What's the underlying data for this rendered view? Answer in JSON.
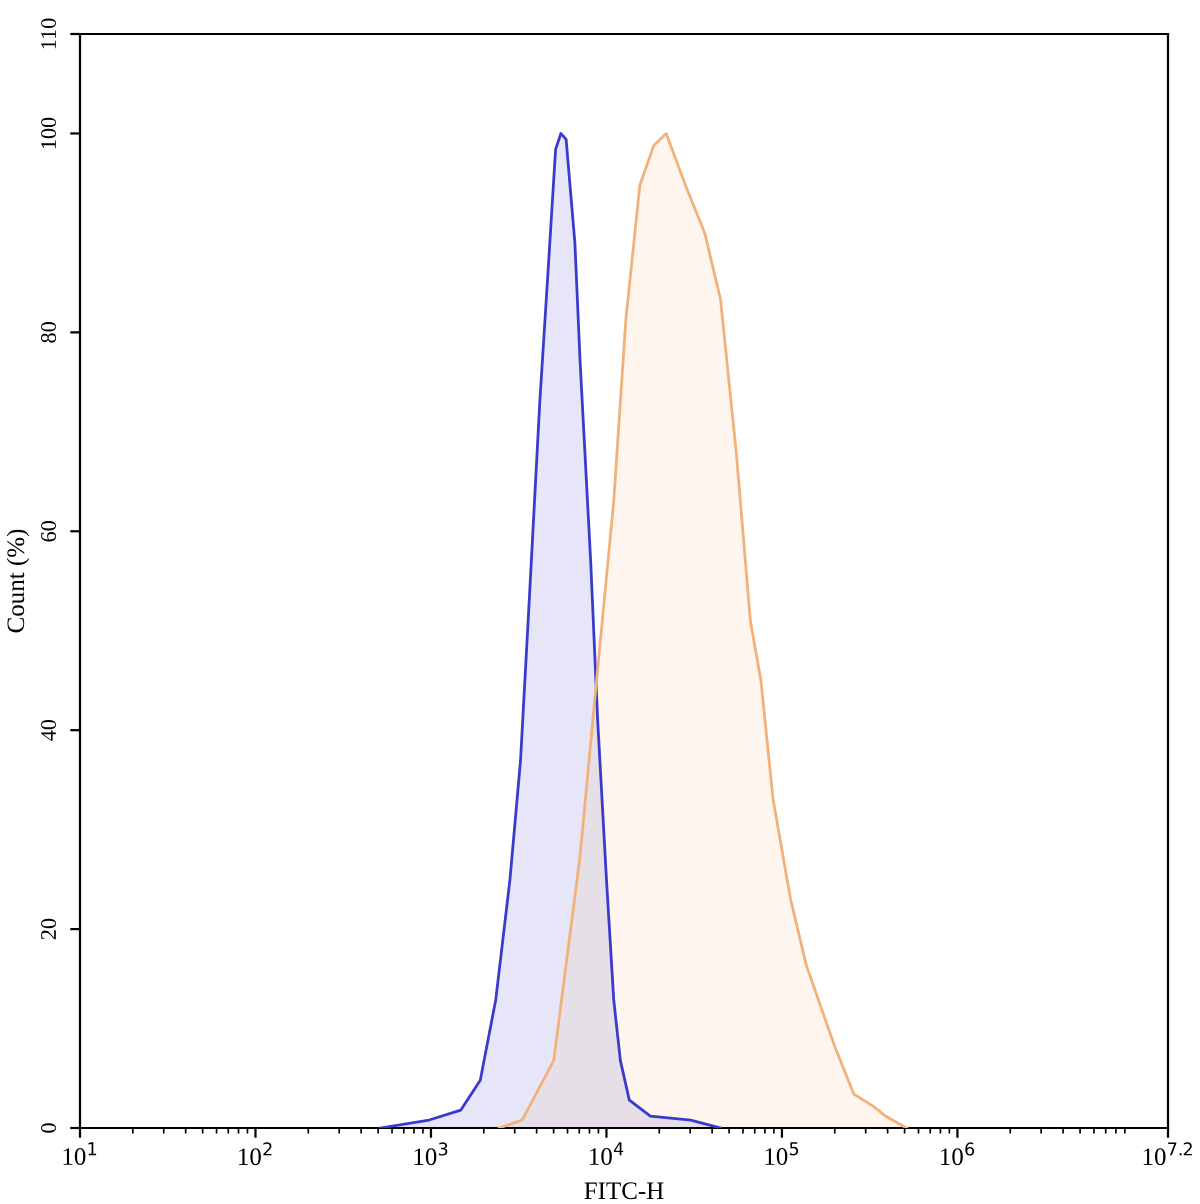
{
  "chart_data": {
    "type": "area",
    "xlabel": "FITC-H",
    "ylabel": "Count (%)",
    "log": "x",
    "grid": false,
    "legend": false,
    "xlim": [
      10,
      15848932
    ],
    "ylim": [
      0,
      110
    ],
    "xticks": [
      {
        "value": 10,
        "label": "10$^{1}$"
      },
      {
        "value": 100,
        "label": "10$^{2}$"
      },
      {
        "value": 1000,
        "label": "10$^{3}$"
      },
      {
        "value": 10000,
        "label": "10$^{4}$"
      },
      {
        "value": 100000,
        "label": "10$^{5}$"
      },
      {
        "value": 1000000,
        "label": "10$^{6}$"
      },
      {
        "value": 15848932,
        "label": "10$^{7.2}$"
      }
    ],
    "yticks": [
      0,
      20,
      40,
      60,
      80,
      100,
      110
    ],
    "series": [
      {
        "color": "#3a3acc",
        "x": [
          513,
          977,
          1480,
          1910,
          2340,
          2820,
          3240,
          3630,
          4170,
          4680,
          5130,
          5500,
          5890,
          6610,
          7080,
          8130,
          8910,
          10000,
          11000,
          12000,
          13500,
          17800,
          30200,
          44700
        ],
        "values": [
          0,
          0.8,
          1.8,
          4.8,
          12.9,
          25,
          37,
          53,
          73,
          87,
          98.4,
          100,
          99.4,
          89,
          77,
          57,
          41,
          25,
          12.9,
          6.8,
          2.8,
          1.2,
          0.8,
          0
        ]
      },
      {
        "color": "#f0b27a",
        "x": [
          2450,
          3310,
          5010,
          7080,
          8710,
          11000,
          12900,
          15500,
          18600,
          21900,
          28200,
          36300,
          44700,
          55000,
          66100,
          75900,
          89100,
          112000,
          138000,
          200000,
          257000,
          331000,
          389000,
          513000
        ],
        "values": [
          0,
          0.8,
          6.8,
          27.4,
          44.3,
          63,
          81.3,
          94.8,
          98.8,
          100,
          94.8,
          90,
          83.3,
          67.8,
          51,
          45,
          33,
          23,
          16.3,
          8.2,
          3.4,
          2.2,
          1.2,
          0
        ]
      }
    ]
  }
}
